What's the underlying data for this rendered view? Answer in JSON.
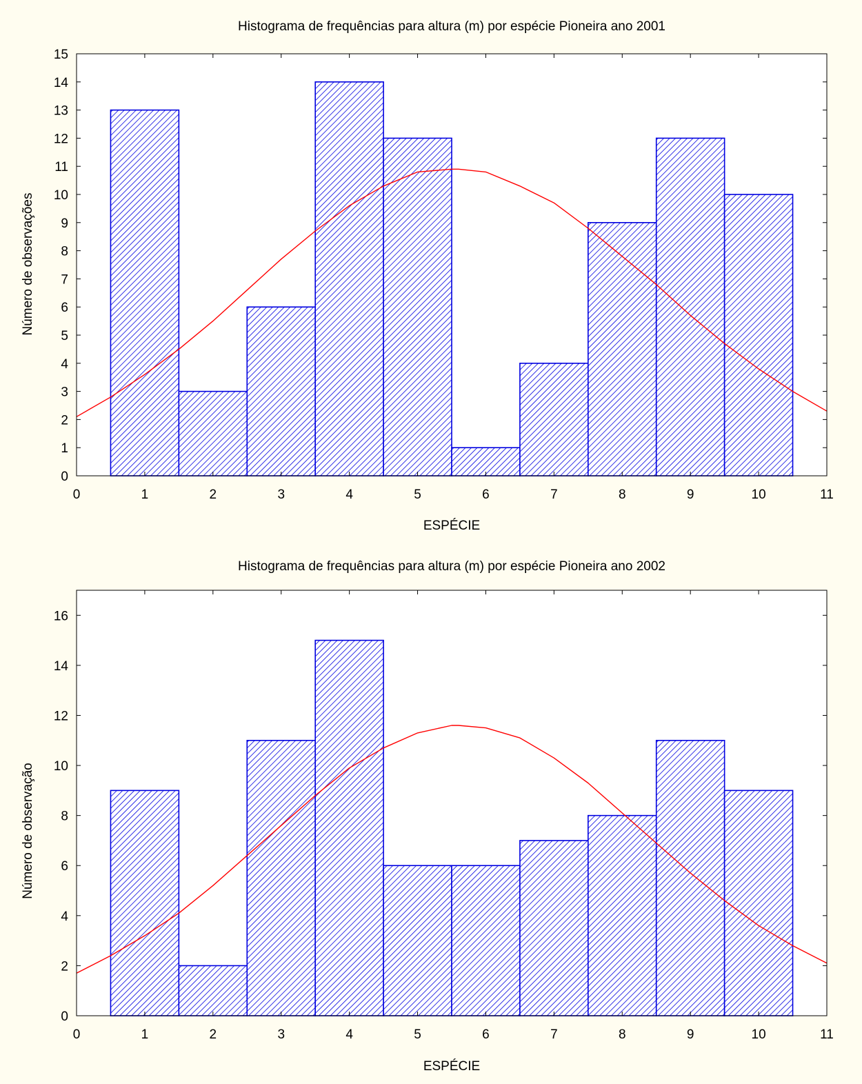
{
  "background_color": "#fffdf0",
  "bar_color": "#0000e0",
  "curve_color": "#ff0000",
  "chart_data": [
    {
      "type": "bar",
      "title": "Histograma de frequências para altura (m) por espécie Pioneira ano 2001",
      "xlabel": "ESPÉCIE",
      "ylabel": "Número de observações",
      "categories": [
        1,
        2,
        3,
        4,
        5,
        6,
        7,
        8,
        9,
        10
      ],
      "values": [
        13,
        3,
        6,
        14,
        12,
        1,
        4,
        9,
        12,
        10
      ],
      "bin_width": 1,
      "xlim": [
        0,
        11
      ],
      "ylim": [
        0,
        15
      ],
      "xticks": [
        0,
        1,
        2,
        3,
        4,
        5,
        6,
        7,
        8,
        9,
        10,
        11
      ],
      "yticks": [
        0,
        1,
        2,
        3,
        4,
        5,
        6,
        7,
        8,
        9,
        10,
        11,
        12,
        13,
        14,
        15
      ],
      "bar_fill": "diagonal hatch",
      "fitted_curve": {
        "type": "normal",
        "x": [
          0,
          0.5,
          1,
          1.5,
          2,
          2.5,
          3,
          3.5,
          4,
          4.5,
          5,
          5.5,
          5.6,
          6,
          6.5,
          7,
          7.5,
          8,
          8.5,
          9,
          9.5,
          10,
          10.5,
          11
        ],
        "y": [
          2.1,
          2.8,
          3.6,
          4.5,
          5.5,
          6.6,
          7.7,
          8.7,
          9.6,
          10.3,
          10.8,
          10.9,
          10.9,
          10.8,
          10.3,
          9.7,
          8.8,
          7.8,
          6.8,
          5.7,
          4.7,
          3.8,
          3.0,
          2.3
        ]
      }
    },
    {
      "type": "bar",
      "title": "Histograma de frequências para altura (m) por espécie Pioneira ano 2002",
      "xlabel": "ESPÉCIE",
      "ylabel": "Número de observação",
      "categories": [
        1,
        2,
        3,
        4,
        5,
        6,
        7,
        8,
        9,
        10
      ],
      "values": [
        9,
        2,
        11,
        15,
        6,
        6,
        7,
        8,
        11,
        9
      ],
      "bin_width": 1,
      "xlim": [
        0,
        11
      ],
      "ylim": [
        0,
        17
      ],
      "xticks": [
        0,
        1,
        2,
        3,
        4,
        5,
        6,
        7,
        8,
        9,
        10,
        11
      ],
      "yticks": [
        0,
        2,
        4,
        6,
        8,
        10,
        12,
        14,
        16
      ],
      "bar_fill": "diagonal hatch",
      "fitted_curve": {
        "type": "normal",
        "x": [
          0,
          0.5,
          1,
          1.5,
          2,
          2.5,
          3,
          3.5,
          4,
          4.5,
          5,
          5.5,
          5.6,
          6,
          6.5,
          7,
          7.5,
          8,
          8.5,
          9,
          9.5,
          10,
          10.5,
          11
        ],
        "y": [
          1.7,
          2.4,
          3.2,
          4.1,
          5.2,
          6.4,
          7.6,
          8.8,
          9.9,
          10.7,
          11.3,
          11.6,
          11.6,
          11.5,
          11.1,
          10.3,
          9.3,
          8.1,
          6.9,
          5.7,
          4.6,
          3.6,
          2.8,
          2.1
        ]
      }
    }
  ]
}
